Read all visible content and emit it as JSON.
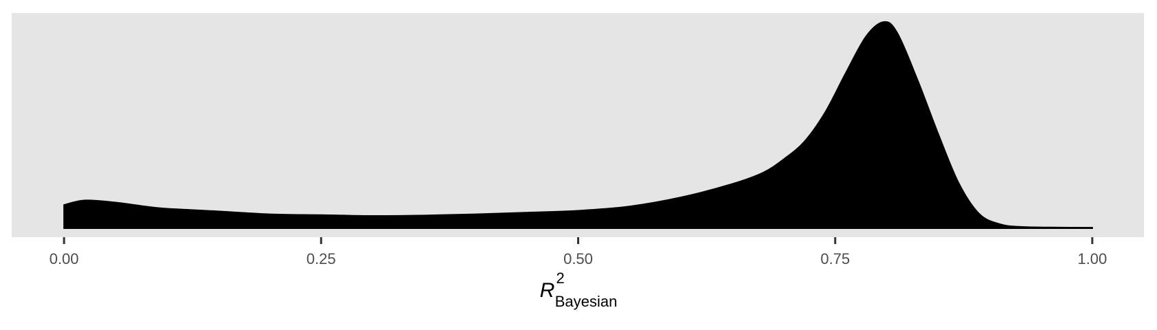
{
  "chart_data": {
    "type": "area",
    "title": "",
    "xlabel": {
      "main": "R",
      "superscript": "2",
      "subscript": "Bayesian"
    },
    "ylabel": "",
    "xlim": [
      0,
      1
    ],
    "x_ticks": [
      0,
      0.25,
      0.5,
      0.75,
      1.0
    ],
    "x_tick_labels": [
      "0.00",
      "0.25",
      "0.50",
      "0.75",
      "1.00"
    ],
    "y_ticks_shown": false,
    "grid": false,
    "panel_background": "#e5e5e5",
    "fill_color": "#000000",
    "series": [
      {
        "x": [
          0,
          0.02,
          0.05,
          0.08,
          0.1,
          0.15,
          0.2,
          0.25,
          0.3,
          0.35,
          0.4,
          0.45,
          0.5,
          0.55,
          0.6,
          0.65,
          0.68,
          0.7,
          0.72,
          0.74,
          0.76,
          0.78,
          0.797,
          0.81,
          0.83,
          0.85,
          0.87,
          0.89,
          0.91,
          0.93,
          0.96,
          1.0
        ],
        "y": [
          0.113,
          0.135,
          0.125,
          0.105,
          0.095,
          0.082,
          0.068,
          0.064,
          0.06,
          0.062,
          0.068,
          0.076,
          0.085,
          0.106,
          0.15,
          0.215,
          0.27,
          0.335,
          0.42,
          0.56,
          0.75,
          0.93,
          1.0,
          0.95,
          0.72,
          0.46,
          0.22,
          0.07,
          0.02,
          0.007,
          0.004,
          0.003
        ]
      }
    ]
  }
}
